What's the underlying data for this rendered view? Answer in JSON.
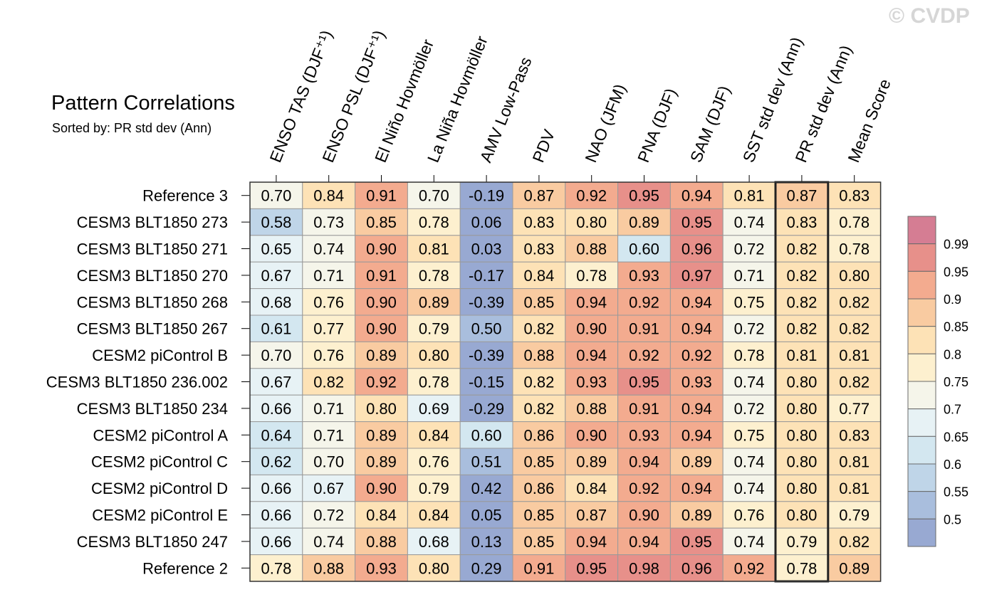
{
  "watermark": "© CVDP",
  "chart_data": {
    "type": "heatmap",
    "title": "Pattern Correlations",
    "subtitle": "Sorted by: PR std dev (Ann)",
    "columns": [
      "ENSO TAS (DJF⁺¹)",
      "ENSO PSL (DJF⁺¹)",
      "El Niño Hovmöller",
      "La Niña Hovmöller",
      "AMV Low-Pass",
      "PDV",
      "NAO (JFM)",
      "PNA (DJF)",
      "SAM (DJF)",
      "SST std dev (Ann)",
      "PR std dev (Ann)",
      "Mean Score"
    ],
    "highlighted_column": "PR std dev (Ann)",
    "rows": [
      "Reference 3",
      "CESM3 BLT1850 273",
      "CESM3 BLT1850 271",
      "CESM3 BLT1850 270",
      "CESM3 BLT1850 268",
      "CESM3 BLT1850 267",
      "CESM2 piControl B",
      "CESM3 BLT1850 236.002",
      "CESM3 BLT1850 234",
      "CESM2 piControl A",
      "CESM2 piControl C",
      "CESM2 piControl D",
      "CESM2 piControl E",
      "CESM3 BLT1850 247",
      "Reference 2"
    ],
    "values": [
      [
        "0.70",
        "0.84",
        "0.91",
        "0.70",
        "-0.19",
        "0.87",
        "0.92",
        "0.95",
        "0.94",
        "0.81",
        "0.87",
        "0.83"
      ],
      [
        "0.58",
        "0.73",
        "0.85",
        "0.78",
        "0.06",
        "0.83",
        "0.80",
        "0.89",
        "0.95",
        "0.74",
        "0.83",
        "0.78"
      ],
      [
        "0.65",
        "0.74",
        "0.90",
        "0.81",
        "0.03",
        "0.83",
        "0.88",
        "0.60",
        "0.96",
        "0.72",
        "0.82",
        "0.78"
      ],
      [
        "0.67",
        "0.71",
        "0.91",
        "0.78",
        "-0.17",
        "0.84",
        "0.78",
        "0.93",
        "0.97",
        "0.71",
        "0.82",
        "0.80"
      ],
      [
        "0.68",
        "0.76",
        "0.90",
        "0.89",
        "-0.39",
        "0.85",
        "0.94",
        "0.92",
        "0.94",
        "0.75",
        "0.82",
        "0.82"
      ],
      [
        "0.61",
        "0.77",
        "0.90",
        "0.79",
        "0.50",
        "0.82",
        "0.90",
        "0.91",
        "0.94",
        "0.72",
        "0.82",
        "0.82"
      ],
      [
        "0.70",
        "0.76",
        "0.89",
        "0.80",
        "-0.39",
        "0.88",
        "0.94",
        "0.92",
        "0.92",
        "0.78",
        "0.81",
        "0.81"
      ],
      [
        "0.67",
        "0.82",
        "0.92",
        "0.78",
        "-0.15",
        "0.82",
        "0.93",
        "0.95",
        "0.93",
        "0.74",
        "0.80",
        "0.82"
      ],
      [
        "0.66",
        "0.71",
        "0.80",
        "0.69",
        "-0.29",
        "0.82",
        "0.88",
        "0.91",
        "0.94",
        "0.72",
        "0.80",
        "0.77"
      ],
      [
        "0.64",
        "0.71",
        "0.89",
        "0.84",
        "0.60",
        "0.86",
        "0.90",
        "0.93",
        "0.94",
        "0.75",
        "0.80",
        "0.83"
      ],
      [
        "0.62",
        "0.70",
        "0.89",
        "0.76",
        "0.51",
        "0.85",
        "0.89",
        "0.94",
        "0.89",
        "0.74",
        "0.80",
        "0.81"
      ],
      [
        "0.66",
        "0.67",
        "0.90",
        "0.79",
        "0.42",
        "0.86",
        "0.84",
        "0.92",
        "0.94",
        "0.74",
        "0.80",
        "0.81"
      ],
      [
        "0.66",
        "0.72",
        "0.84",
        "0.84",
        "0.05",
        "0.85",
        "0.87",
        "0.90",
        "0.89",
        "0.76",
        "0.80",
        "0.79"
      ],
      [
        "0.66",
        "0.74",
        "0.88",
        "0.68",
        "0.13",
        "0.85",
        "0.94",
        "0.94",
        "0.95",
        "0.74",
        "0.79",
        "0.82"
      ],
      [
        "0.78",
        "0.88",
        "0.93",
        "0.80",
        "0.29",
        "0.91",
        "0.95",
        "0.98",
        "0.96",
        "0.92",
        "0.78",
        "0.89"
      ]
    ],
    "colorbar": {
      "labels": [
        "0.99",
        "0.95",
        "0.9",
        "0.85",
        "0.8",
        "0.75",
        "0.7",
        "0.65",
        "0.6",
        "0.55",
        "0.5"
      ],
      "thresholds": [
        0.5,
        0.55,
        0.6,
        0.65,
        0.7,
        0.75,
        0.8,
        0.85,
        0.9,
        0.95,
        0.99
      ],
      "colors": [
        "#98a9d2",
        "#a9bedd",
        "#bfd5e8",
        "#d3e7f0",
        "#e7f2f5",
        "#f5f5ea",
        "#fdf0cf",
        "#fde2b6",
        "#f9cba1",
        "#f3ab8f",
        "#e7908a",
        "#d57d93"
      ]
    }
  }
}
